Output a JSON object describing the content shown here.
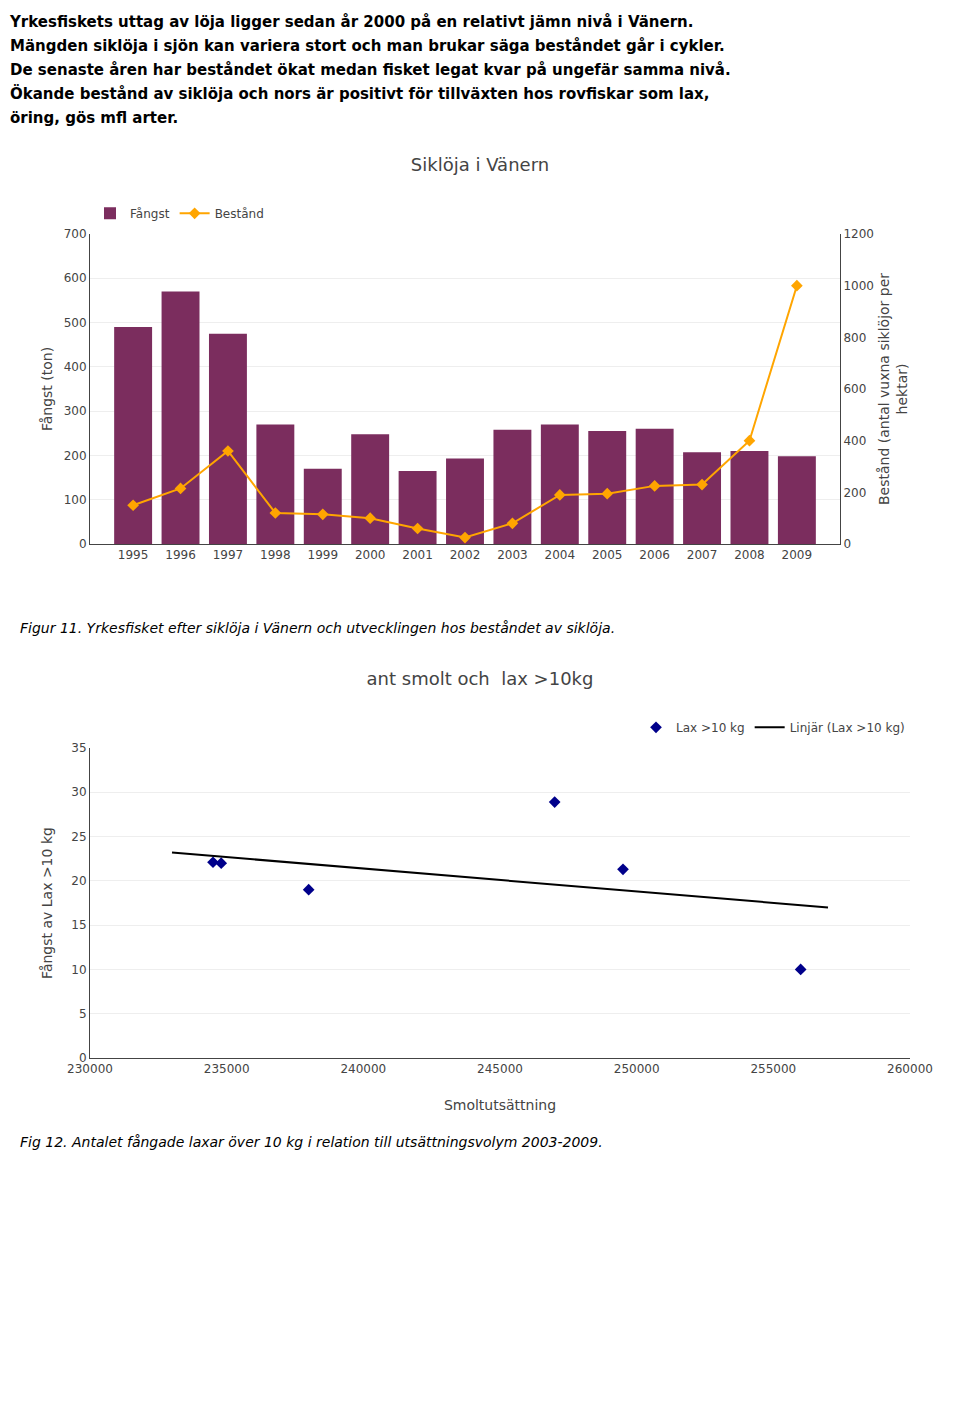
{
  "chart_data": [
    {
      "type": "bar",
      "title": "Siklöja i Vänern",
      "subtitle": [
        "Yrkesfiskets uttag av löja ligger sedan år 2000 på en relativt jämn nivå i Vänern.",
        "Mängden siklöja i sjön kan variera stort och man brukar säga beståndet går i cykler.",
        "De senaste åren har beståndet ökat medan fisket legat kvar på ungefär samma nivå.",
        "Ökande bestånd av siklöja och nors är positivt för tillväxten hos rovfiskar som lax,",
        "öring, gös mfl arter."
      ],
      "annotations": [
        "Figur 11.  Yrkesfisket efter siklöja i Vänern och utvecklingen hos beståndet av siklöja."
      ],
      "categories": [
        "1995",
        "1996",
        "1997",
        "1998",
        "1999",
        "2000",
        "2001",
        "2002",
        "2003",
        "2004",
        "2005",
        "2006",
        "2007",
        "2008",
        "2009"
      ],
      "series": [
        {
          "name": "Fångst",
          "type": "bar",
          "color": "#7B2D5E",
          "values": [
            490,
            570,
            475,
            270,
            170,
            248,
            165,
            193,
            258,
            270,
            255,
            260,
            207,
            210,
            198
          ]
        },
        {
          "name": "Bestånd",
          "type": "line",
          "color": "#FFA500",
          "marker": "diamond",
          "axis": "y2",
          "values": [
            150,
            215,
            360,
            120,
            115,
            100,
            60,
            25,
            80,
            190,
            195,
            225,
            230,
            400,
            1000
          ]
        }
      ],
      "ylabel": "Fångst (ton)",
      "y2label": "Bestånd (antal vuxna siklöjor per\nhektar)",
      "ylim": [
        0,
        700
      ],
      "yticks": [
        0,
        100,
        200,
        300,
        400,
        500,
        600,
        700
      ],
      "y2lim": [
        0,
        1200
      ],
      "y2ticks": [
        0,
        200,
        400,
        600,
        800,
        1000,
        1200
      ],
      "grid": true,
      "legend": "upper left"
    },
    {
      "type": "scatter",
      "title": "ant smolt och  lax >10kg",
      "annotations": [
        "Fig 12.  Antalet fångade laxar över 10 kg i relation till utsättningsvolym 2003-2009."
      ],
      "series": [
        {
          "name": "Lax >10 kg",
          "type": "scatter",
          "color": "#00008B",
          "marker": "diamond",
          "x": [
            234500,
            234800,
            238000,
            247000,
            249500,
            256000
          ],
          "values": [
            22.1,
            22.0,
            19.0,
            28.9,
            21.3,
            10.0
          ]
        },
        {
          "name": "Linjär (Lax >10 kg)",
          "type": "line",
          "color": "#000000",
          "x": [
            233000,
            257000
          ],
          "values": [
            23.2,
            17.0
          ]
        }
      ],
      "xlabel": "Smoltutsättning",
      "ylabel": "Fångst av Lax >10 kg",
      "xlim": [
        230000,
        260000
      ],
      "xticks": [
        230000,
        235000,
        240000,
        245000,
        250000,
        255000,
        260000
      ],
      "ylim": [
        0,
        35
      ],
      "yticks": [
        0,
        5,
        10,
        15,
        20,
        25,
        30,
        35
      ],
      "grid": true,
      "legend": "upper right"
    }
  ]
}
